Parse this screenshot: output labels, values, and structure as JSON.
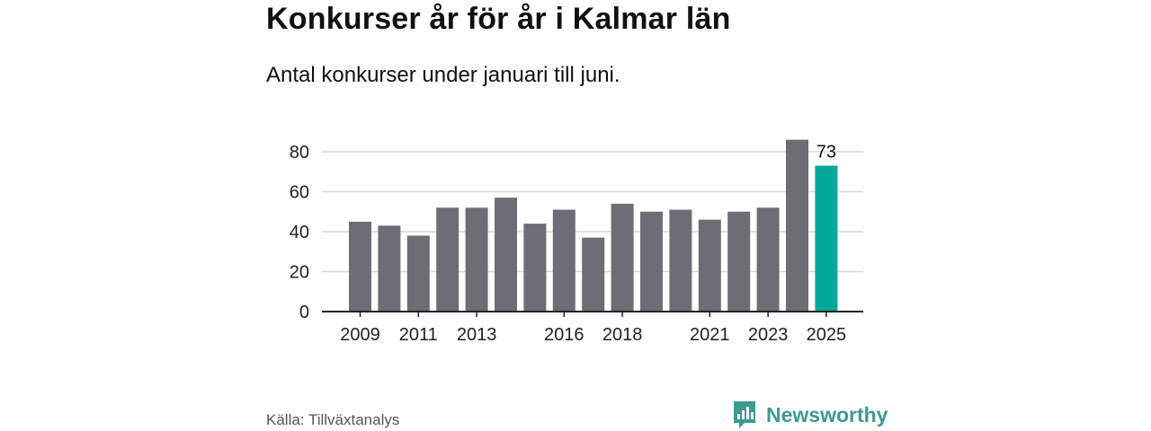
{
  "header": {
    "title": "Konkurser år för år i Kalmar län",
    "subtitle": "Antal konkurser under januari till juni."
  },
  "footer": {
    "source": "Källa: Tillväxtanalys",
    "brand": "Newsworthy",
    "brand_icon": "newsworthy-logo-icon"
  },
  "colors": {
    "bar": "#6e6d75",
    "highlight": "#00a89a",
    "grid": "#d9d9d9",
    "axis": "#222222",
    "brand": "#3d9a8f"
  },
  "chart_data": {
    "type": "bar",
    "categories": [
      "2009",
      "2010",
      "2011",
      "2012",
      "2013",
      "2014",
      "2015",
      "2016",
      "2017",
      "2018",
      "2019",
      "2020",
      "2021",
      "2022",
      "2023",
      "2024",
      "2025"
    ],
    "values": [
      45,
      43,
      38,
      52,
      52,
      57,
      44,
      51,
      37,
      54,
      50,
      51,
      46,
      50,
      52,
      86,
      73
    ],
    "visible_tick_labels": [
      "2009",
      "2011",
      "2013",
      "2016",
      "2018",
      "2021",
      "2023",
      "2025"
    ],
    "highlight_index": 16,
    "highlight_label": "73",
    "title": "Konkurser år för år i Kalmar län",
    "xlabel": "",
    "ylabel": "",
    "ylim": [
      0,
      90
    ],
    "yticks": [
      0,
      20,
      40,
      60,
      80
    ],
    "grid": true
  }
}
